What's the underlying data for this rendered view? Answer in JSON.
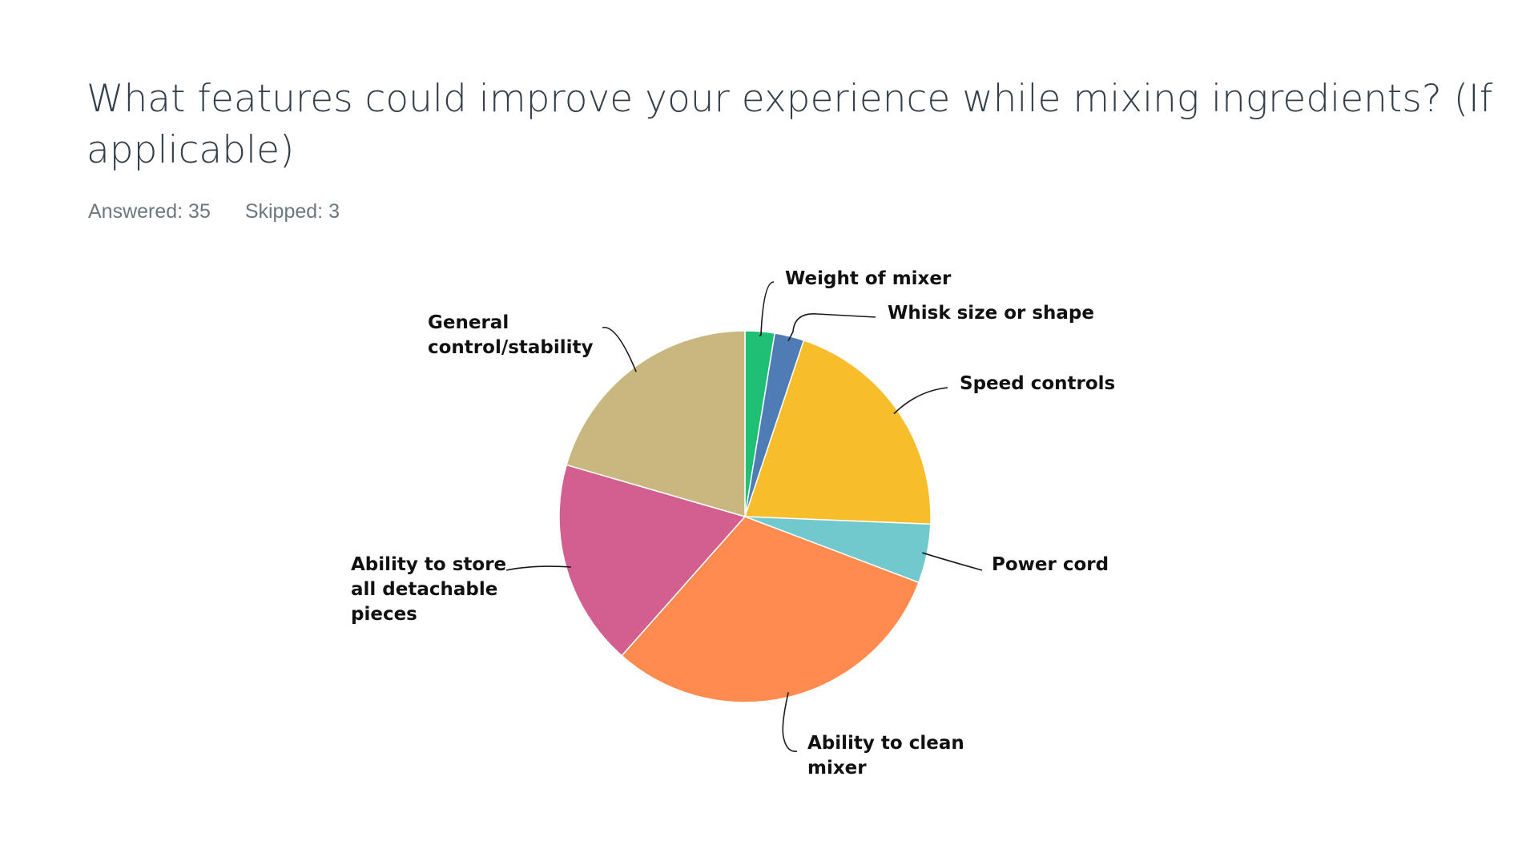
{
  "question": {
    "title": "What features could improve your experience while mixing ingredients? (If applicable)",
    "answered": "Answered: 35",
    "skipped": "Skipped: 3"
  },
  "chart_data": {
    "type": "pie",
    "title": "What features could improve your experience while mixing ingredients? (If applicable)",
    "start": "12 o'clock",
    "direction": "clockwise",
    "slices": [
      {
        "label": "Weight of mixer",
        "lines": [
          "Weight of mixer"
        ],
        "value": 1,
        "color": "#1fbf75"
      },
      {
        "label": "Whisk size or shape",
        "lines": [
          "Whisk size or shape"
        ],
        "value": 1,
        "color": "#507cb6"
      },
      {
        "label": "Speed controls",
        "lines": [
          "Speed controls"
        ],
        "value": 8,
        "color": "#f7bd2a"
      },
      {
        "label": "Power cord",
        "lines": [
          "Power cord"
        ],
        "value": 2,
        "color": "#71c8cd"
      },
      {
        "label": "Ability to clean mixer",
        "lines": [
          "Ability to clean",
          "mixer"
        ],
        "value": 12,
        "color": "#ff8b4f"
      },
      {
        "label": "Ability to store all detachable pieces",
        "lines": [
          "Ability to store",
          "all detachable",
          "pieces"
        ],
        "value": 7,
        "color": "#d25f90"
      },
      {
        "label": "General control/stability",
        "lines": [
          "General",
          "control/stability"
        ],
        "value": 8,
        "color": "#c8b77f"
      }
    ]
  }
}
